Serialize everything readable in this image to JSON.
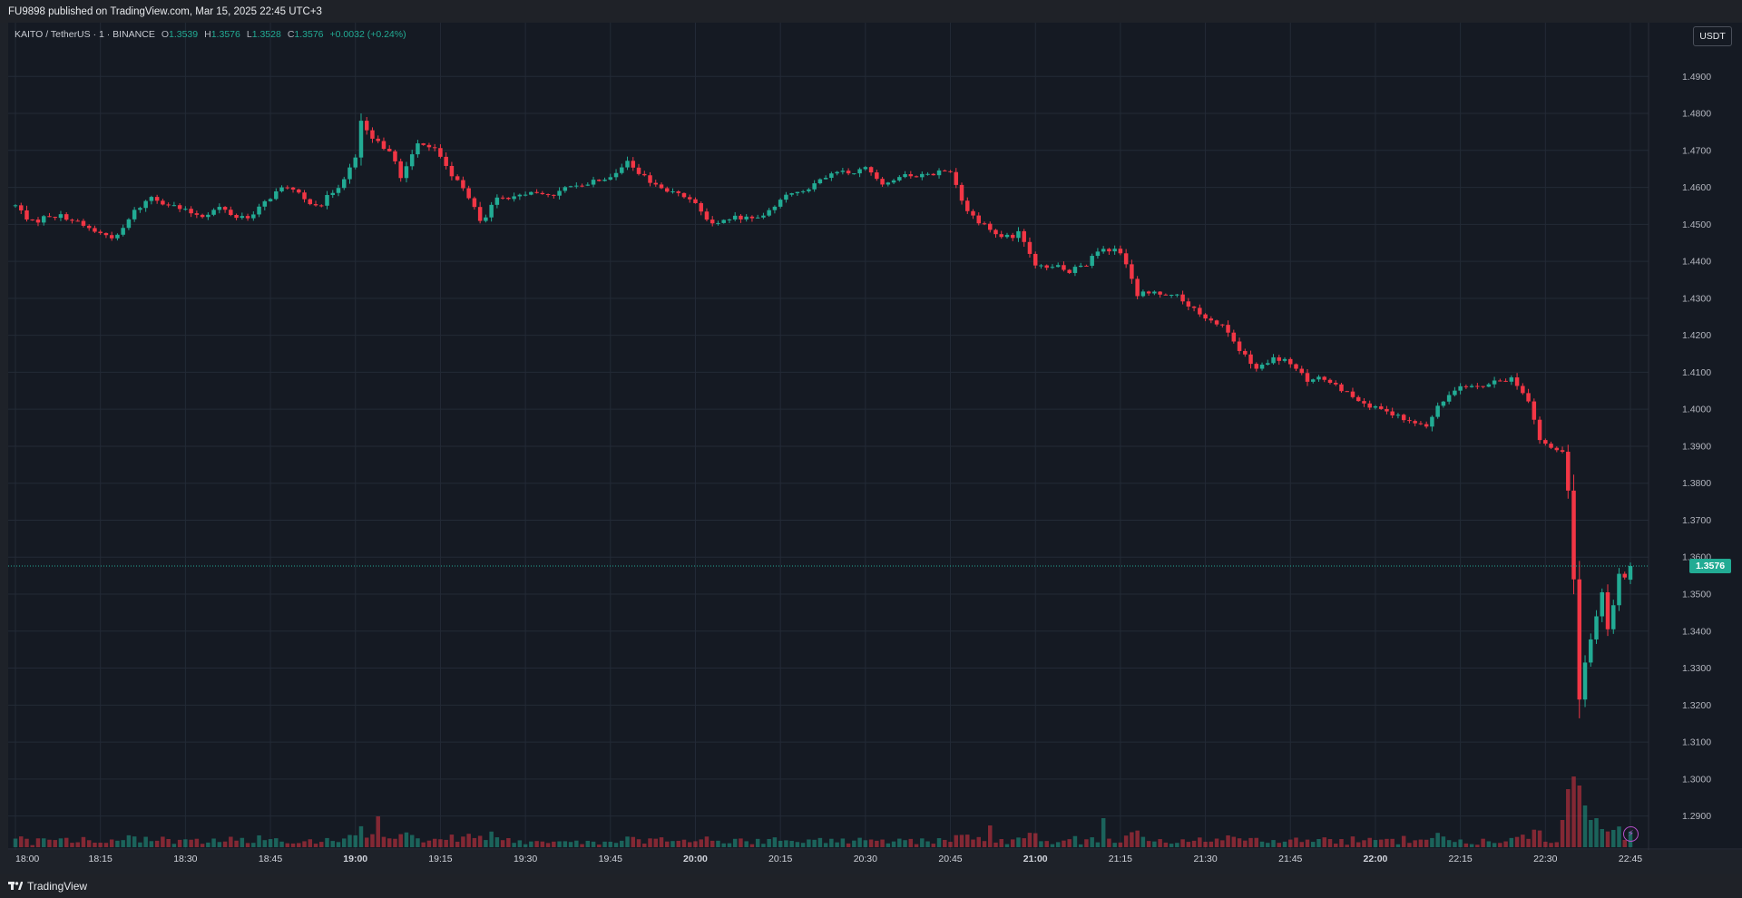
{
  "header": {
    "published_text": "FU9898 published on TradingView.com, Mar 15, 2025 22:45 UTC+3"
  },
  "legend": {
    "symbol": "KAITO / TetherUS · 1 · BINANCE",
    "open_label": "O",
    "open": "1.3539",
    "high_label": "H",
    "high": "1.3576",
    "low_label": "L",
    "low": "1.3528",
    "close_label": "C",
    "close": "1.3576",
    "change": "+0.0032 (+0.24%)"
  },
  "currency_button": "USDT",
  "last_price_label": "1.3576",
  "footer": {
    "brand": "TradingView"
  },
  "icons": {
    "logo": "tradingview-logo-icon",
    "alert": "lightning-bolt-icon"
  },
  "colors": {
    "up": "#22ab94",
    "down": "#f23645",
    "background": "#151a23",
    "grid": "#232a36"
  },
  "chart_data": {
    "type": "candlestick",
    "interval": "1m",
    "y_ticks": [
      "1.4900",
      "1.4800",
      "1.4700",
      "1.4600",
      "1.4500",
      "1.4400",
      "1.4300",
      "1.4200",
      "1.4100",
      "1.4000",
      "1.3900",
      "1.3800",
      "1.3700",
      "1.3600",
      "1.3500",
      "1.3400",
      "1.3300",
      "1.3200",
      "1.3100",
      "1.3000",
      "1.2900"
    ],
    "x_ticks": [
      "18:00",
      "18:15",
      "18:30",
      "18:45",
      "19:00",
      "19:15",
      "19:30",
      "19:45",
      "20:00",
      "20:15",
      "20:30",
      "20:45",
      "21:00",
      "21:15",
      "21:30",
      "21:45",
      "22:00",
      "22:15",
      "22:30",
      "22:45"
    ],
    "x_ticks_bold": [
      "19:00",
      "20:00",
      "21:00",
      "22:00"
    ],
    "x_range": [
      "18:00",
      "22:45"
    ],
    "y_range": [
      1.285,
      1.4935
    ],
    "last_price": 1.3576,
    "path_close": [
      [
        "18:00",
        1.455
      ],
      [
        "18:03",
        1.4505
      ],
      [
        "18:06",
        1.4525
      ],
      [
        "18:09",
        1.452
      ],
      [
        "18:12",
        1.4495
      ],
      [
        "18:15",
        1.4475
      ],
      [
        "18:18",
        1.4465
      ],
      [
        "18:21",
        1.4535
      ],
      [
        "18:24",
        1.4575
      ],
      [
        "18:27",
        1.4555
      ],
      [
        "18:30",
        1.4535
      ],
      [
        "18:33",
        1.4525
      ],
      [
        "18:36",
        1.4545
      ],
      [
        "18:39",
        1.452
      ],
      [
        "18:42",
        1.4525
      ],
      [
        "18:45",
        1.4575
      ],
      [
        "18:48",
        1.4605
      ],
      [
        "18:51",
        1.4565
      ],
      [
        "18:54",
        1.4555
      ],
      [
        "18:57",
        1.4605
      ],
      [
        "19:00",
        1.4675
      ],
      [
        "19:01",
        1.478
      ],
      [
        "19:03",
        1.4725
      ],
      [
        "19:06",
        1.4705
      ],
      [
        "19:08",
        1.4625
      ],
      [
        "19:11",
        1.4725
      ],
      [
        "19:14",
        1.4705
      ],
      [
        "19:17",
        1.4635
      ],
      [
        "19:20",
        1.4575
      ],
      [
        "19:22",
        1.4505
      ],
      [
        "19:25",
        1.4565
      ],
      [
        "19:28",
        1.457
      ],
      [
        "19:30",
        1.4585
      ],
      [
        "19:33",
        1.458
      ],
      [
        "19:36",
        1.4585
      ],
      [
        "19:39",
        1.461
      ],
      [
        "19:42",
        1.4615
      ],
      [
        "19:45",
        1.4635
      ],
      [
        "19:48",
        1.4665
      ],
      [
        "19:51",
        1.4625
      ],
      [
        "19:54",
        1.4595
      ],
      [
        "19:57",
        1.458
      ],
      [
        "20:00",
        1.4565
      ],
      [
        "20:03",
        1.4495
      ],
      [
        "20:06",
        1.4515
      ],
      [
        "20:09",
        1.452
      ],
      [
        "20:12",
        1.452
      ],
      [
        "20:15",
        1.457
      ],
      [
        "20:18",
        1.459
      ],
      [
        "20:21",
        1.4605
      ],
      [
        "20:24",
        1.4635
      ],
      [
        "20:27",
        1.464
      ],
      [
        "20:30",
        1.465
      ],
      [
        "20:33",
        1.4615
      ],
      [
        "20:36",
        1.4625
      ],
      [
        "20:39",
        1.4635
      ],
      [
        "20:42",
        1.464
      ],
      [
        "20:45",
        1.4645
      ],
      [
        "20:48",
        1.4535
      ],
      [
        "20:51",
        1.4495
      ],
      [
        "20:54",
        1.446
      ],
      [
        "20:57",
        1.4475
      ],
      [
        "21:00",
        1.4385
      ],
      [
        "21:03",
        1.439
      ],
      [
        "21:06",
        1.4375
      ],
      [
        "21:09",
        1.4395
      ],
      [
        "21:12",
        1.4435
      ],
      [
        "21:15",
        1.4425
      ],
      [
        "21:18",
        1.431
      ],
      [
        "21:21",
        1.4315
      ],
      [
        "21:24",
        1.4315
      ],
      [
        "21:27",
        1.428
      ],
      [
        "21:30",
        1.424
      ],
      [
        "21:33",
        1.423
      ],
      [
        "21:36",
        1.416
      ],
      [
        "21:39",
        1.4105
      ],
      [
        "21:42",
        1.4135
      ],
      [
        "21:45",
        1.4125
      ],
      [
        "21:48",
        1.4075
      ],
      [
        "21:51",
        1.4085
      ],
      [
        "21:54",
        1.4055
      ],
      [
        "21:57",
        1.403
      ],
      [
        "22:00",
        1.4
      ],
      [
        "22:03",
        1.3985
      ],
      [
        "22:06",
        1.3965
      ],
      [
        "22:09",
        1.3955
      ],
      [
        "22:12",
        1.4025
      ],
      [
        "22:15",
        1.407
      ],
      [
        "22:18",
        1.406
      ],
      [
        "22:21",
        1.407
      ],
      [
        "22:24",
        1.4085
      ],
      [
        "22:27",
        1.4025
      ],
      [
        "22:29",
        1.392
      ],
      [
        "22:31",
        1.389
      ],
      [
        "22:33",
        1.388
      ],
      [
        "22:34",
        1.378
      ],
      [
        "22:35",
        1.354
      ],
      [
        "22:36",
        1.3215
      ],
      [
        "22:37",
        1.3315
      ],
      [
        "22:39",
        1.344
      ],
      [
        "22:40",
        1.3505
      ],
      [
        "22:41",
        1.3405
      ],
      [
        "22:42",
        1.347
      ],
      [
        "22:43",
        1.3555
      ],
      [
        "22:44",
        1.3545
      ],
      [
        "22:45",
        1.3576
      ]
    ],
    "volume": {
      "typical_baseline": "low",
      "spikes": [
        {
          "time": "19:04",
          "dir": "down",
          "rel": 0.85
        },
        {
          "time": "20:52",
          "dir": "down",
          "rel": 0.6
        },
        {
          "time": "21:12",
          "dir": "up",
          "rel": 0.8
        },
        {
          "time": "22:33",
          "dir": "down",
          "rel": 0.75
        },
        {
          "time": "22:34",
          "dir": "down",
          "rel": 1.6
        },
        {
          "time": "22:35",
          "dir": "down",
          "rel": 1.95
        },
        {
          "time": "22:36",
          "dir": "down",
          "rel": 1.7
        },
        {
          "time": "22:37",
          "dir": "up",
          "rel": 1.15
        },
        {
          "time": "22:38",
          "dir": "up",
          "rel": 0.75
        },
        {
          "time": "22:39",
          "dir": "up",
          "rel": 0.8
        }
      ]
    }
  }
}
